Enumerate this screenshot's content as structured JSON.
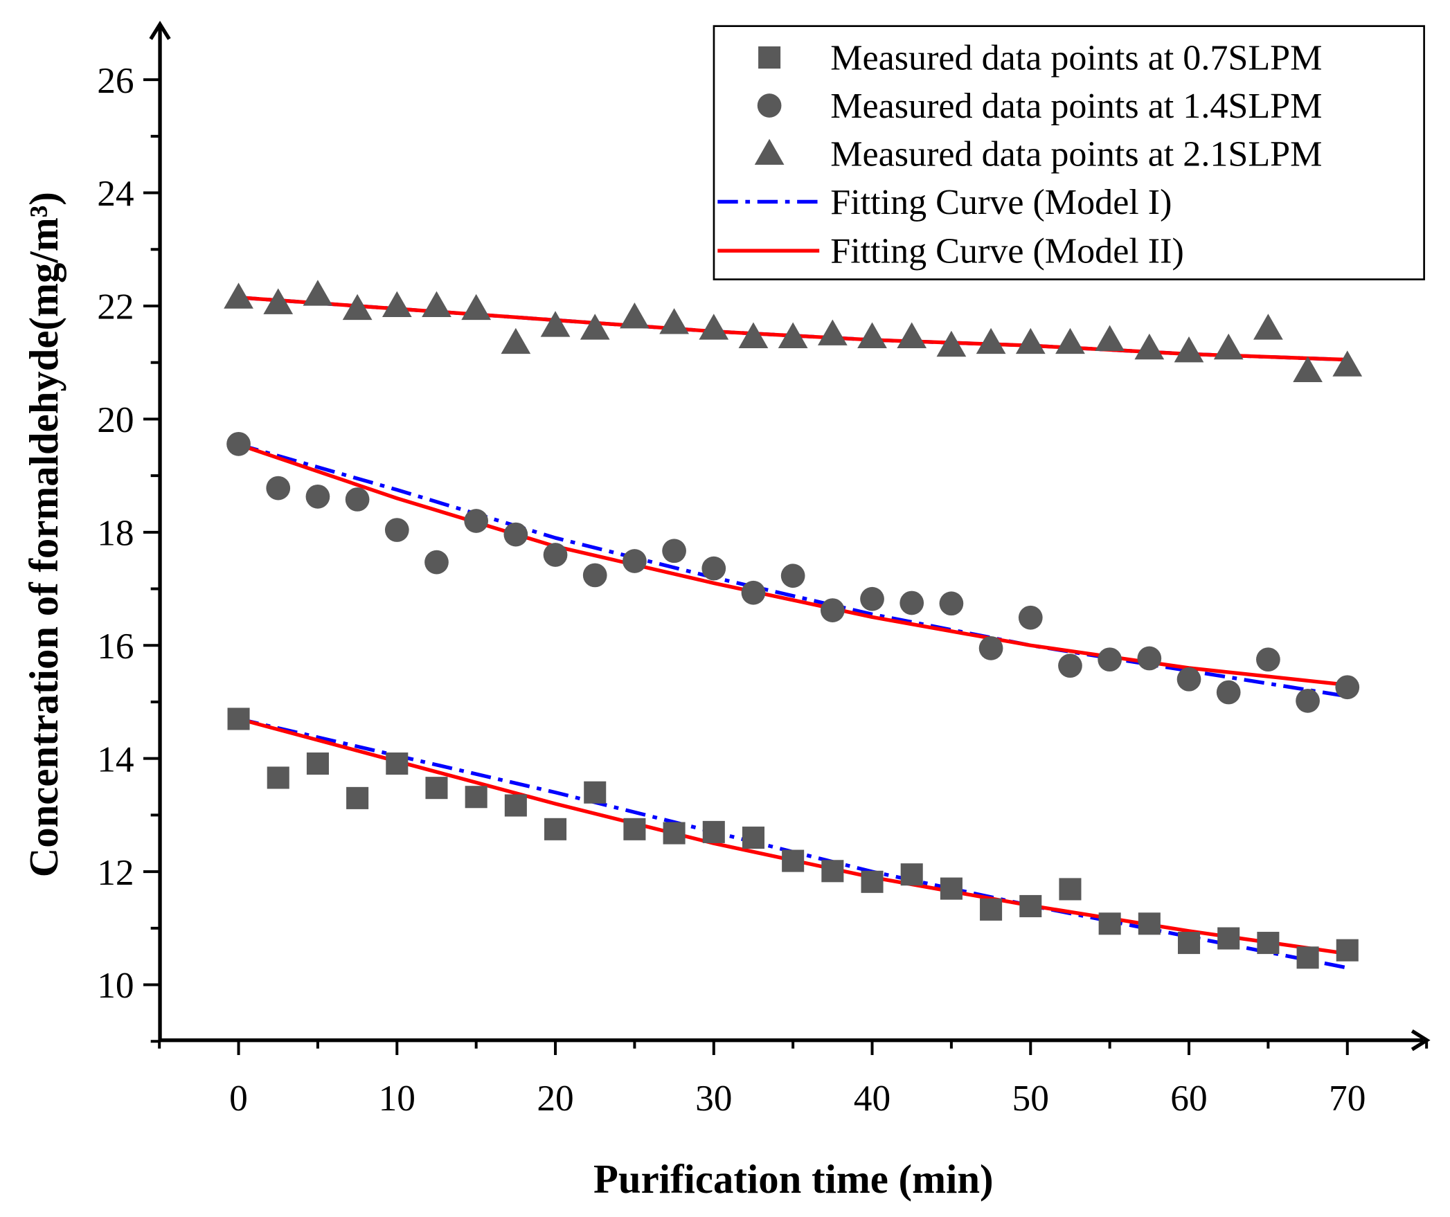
{
  "chart_data": {
    "type": "scatter",
    "title": "",
    "xlabel": "Purification time (min)",
    "ylabel": "Concentration of formaldehyde(mg/m³)",
    "xlim": [
      -5,
      75
    ],
    "ylim": [
      9,
      27
    ],
    "xticks": [
      0,
      10,
      20,
      30,
      40,
      50,
      60,
      70
    ],
    "yticks": [
      10,
      12,
      14,
      16,
      18,
      20,
      22,
      24,
      26
    ],
    "grid": false,
    "legend_position": "top-right",
    "x": [
      0,
      2.5,
      5,
      7.5,
      10,
      12.5,
      15,
      17.5,
      20,
      22.5,
      25,
      27.5,
      30,
      32.5,
      35,
      37.5,
      40,
      42.5,
      45,
      47.5,
      50,
      52.5,
      55,
      57.5,
      60,
      62.5,
      65,
      67.5,
      70
    ],
    "series": [
      {
        "name": "Measured data points at 0.7SLPM",
        "marker": "square",
        "color": "#595959",
        "values": [
          14.7,
          13.66,
          13.91,
          13.3,
          13.91,
          13.48,
          13.32,
          13.17,
          12.75,
          13.4,
          12.75,
          12.68,
          12.7,
          12.6,
          12.19,
          12.01,
          11.82,
          11.95,
          11.7,
          11.33,
          11.39,
          11.69,
          11.08,
          11.08,
          10.74,
          10.82,
          10.74,
          10.48,
          10.61
        ]
      },
      {
        "name": "Measured data points at 1.4SLPM",
        "marker": "circle",
        "color": "#595959",
        "values": [
          19.56,
          18.78,
          18.63,
          18.58,
          18.04,
          17.47,
          18.2,
          17.96,
          17.6,
          17.24,
          17.49,
          17.67,
          17.36,
          16.93,
          17.23,
          16.62,
          16.82,
          16.75,
          16.74,
          15.95,
          16.49,
          15.64,
          15.75,
          15.77,
          15.4,
          15.17,
          15.75,
          15.02,
          15.26
        ]
      },
      {
        "name": "Measured data points at 2.1SLPM",
        "marker": "triangle",
        "color": "#595959",
        "values": [
          22.15,
          22.05,
          22.2,
          21.95,
          22.0,
          22.0,
          21.95,
          21.35,
          21.65,
          21.6,
          21.8,
          21.7,
          21.6,
          21.45,
          21.45,
          21.5,
          21.45,
          21.45,
          21.3,
          21.35,
          21.35,
          21.35,
          21.4,
          21.25,
          21.2,
          21.25,
          21.6,
          20.85,
          20.95
        ]
      }
    ],
    "fits": [
      {
        "name": "Fitting Curve (Model I)",
        "style": "dash-dot",
        "color": "#0000ff",
        "x": [
          0,
          10,
          20,
          30,
          40,
          50,
          60,
          70
        ],
        "curves": [
          [
            14.7,
            14.05,
            13.4,
            12.7,
            12.0,
            11.4,
            10.85,
            10.3
          ],
          [
            19.55,
            18.75,
            17.9,
            17.2,
            16.55,
            16.0,
            15.55,
            15.1
          ],
          [
            22.15,
            21.95,
            21.75,
            21.55,
            21.4,
            21.3,
            21.15,
            21.05
          ]
        ]
      },
      {
        "name": "Fitting Curve (Model II)",
        "style": "solid",
        "color": "#ff0000",
        "x": [
          0,
          10,
          20,
          30,
          40,
          50,
          60,
          70
        ],
        "curves": [
          [
            14.7,
            13.95,
            13.2,
            12.5,
            11.9,
            11.4,
            10.95,
            10.55
          ],
          [
            19.55,
            18.6,
            17.75,
            17.1,
            16.5,
            16.0,
            15.6,
            15.3
          ],
          [
            22.15,
            21.95,
            21.75,
            21.55,
            21.4,
            21.3,
            21.15,
            21.05
          ]
        ]
      }
    ]
  }
}
